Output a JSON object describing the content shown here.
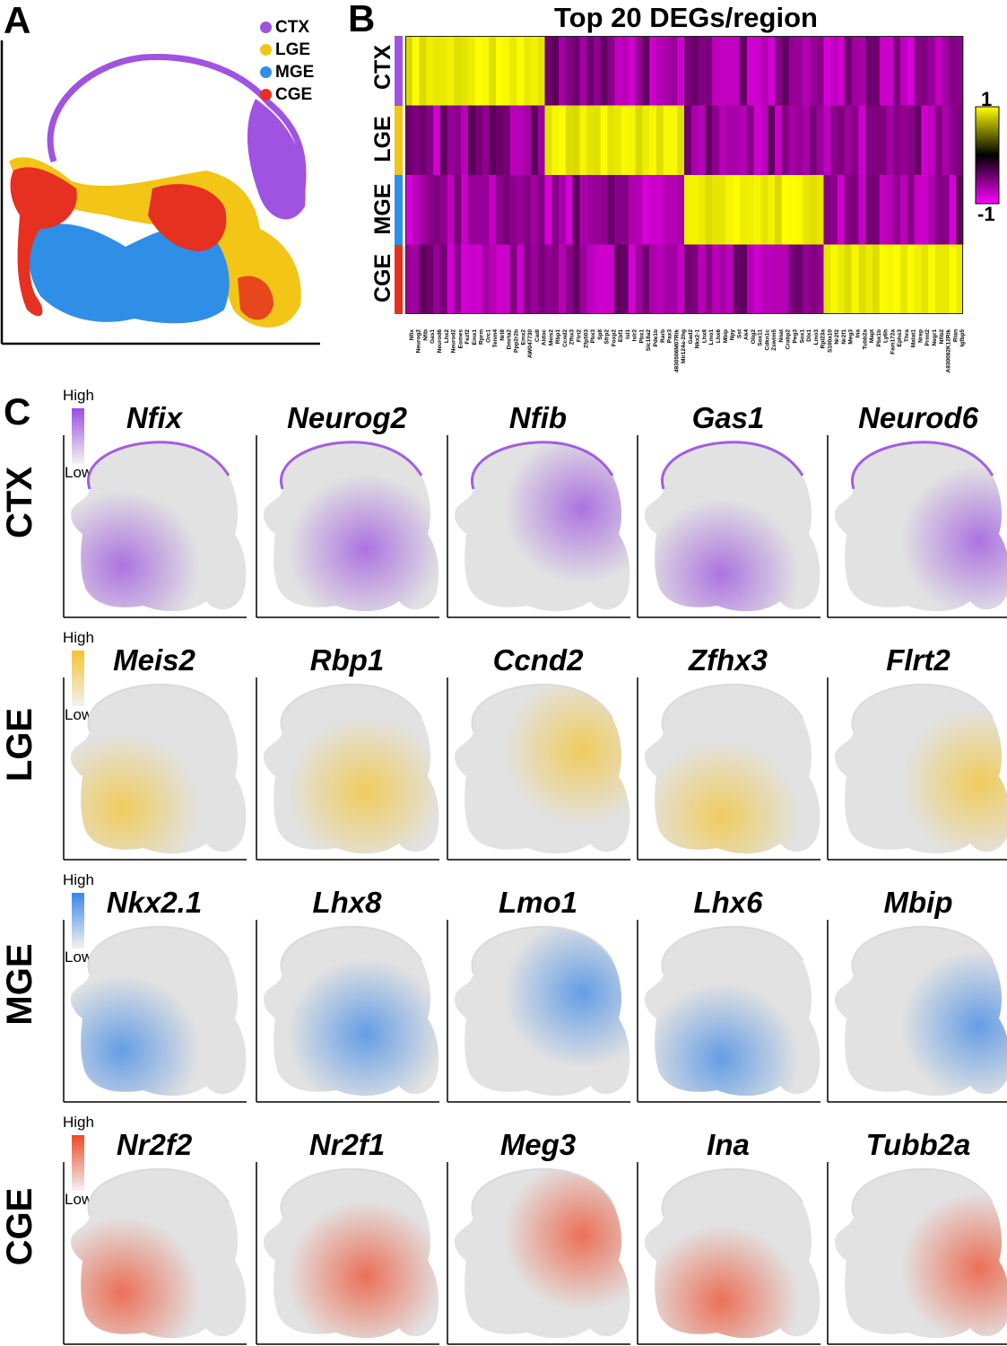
{
  "panels": {
    "a": "A",
    "b": "B",
    "c": "C"
  },
  "legend": [
    {
      "label": "CTX",
      "color": "#a052e0"
    },
    {
      "label": "LGE",
      "color": "#f2c516"
    },
    {
      "label": "MGE",
      "color": "#2f8fe6"
    },
    {
      "label": "CGE",
      "color": "#e63020"
    }
  ],
  "heatmap": {
    "title": "Top 20 DEGs/region",
    "rows": [
      "CTX",
      "LGE",
      "MGE",
      "CGE"
    ],
    "scale_max": "1",
    "scale_min": "-1",
    "genes": [
      "Nfix",
      "Neurog2",
      "Nfib",
      "Gas1",
      "Neurod6",
      "Lhx2",
      "Neurod2",
      "Eomes",
      "Fezf2",
      "Emx1",
      "Rprm",
      "Orc1",
      "Tenm4",
      "Nrl8",
      "Dmrta2",
      "Ppp2r2b",
      "Emx2",
      "AW047730",
      "Cadl",
      "Aldoc",
      "Meis2",
      "Rbp1",
      "Ccnd2",
      "Zfhx3",
      "Flrt2",
      "Zfp503",
      "Pbx3",
      "Sp8",
      "Sfrp2",
      "Foxp2",
      "Ebf1",
      "Isl1",
      "Islr2",
      "Pbx1",
      "Slc18a2",
      "Pde1b",
      "Rarb",
      "Pax3",
      "4930506M07Rik",
      "Mir124a-2hg",
      "Gad2",
      "Nkx2-1",
      "Lhx8",
      "Lmo1",
      "Lhx6",
      "Mbip",
      "Npy",
      "Sst",
      "Ak4",
      "Olig2",
      "Sox11",
      "Cdkn1c",
      "Zswim5",
      "Nnat",
      "Crabp2",
      "Peg3",
      "Sox1",
      "Dlx1",
      "Lmo3",
      "Rpl23a",
      "S100a10",
      "Nr2f2",
      "Nr2f1",
      "Meg3",
      "Ina",
      "Tubb2a",
      "Mapt",
      "Pbx1b",
      "Ly6h",
      "Fam172a",
      "Ephs3",
      "Thra",
      "Malat1",
      "Nrep",
      "Prmt2",
      "Negr1",
      "Nfib2",
      "A930082K12Rik",
      "Rian",
      "Igfbp5"
    ]
  },
  "feature_plots": {
    "high": "High",
    "low": "Low",
    "rows": [
      {
        "region": "CTX",
        "color": "#9a4ee0",
        "genes": [
          "Nfix",
          "Neurog2",
          "Nfib",
          "Gas1",
          "Neurod6"
        ]
      },
      {
        "region": "LGE",
        "color": "#f4c430",
        "genes": [
          "Meis2",
          "Rbp1",
          "Ccnd2",
          "Zfhx3",
          "Flrt2"
        ]
      },
      {
        "region": "MGE",
        "color": "#3b86e6",
        "genes": [
          "Nkx2.1",
          "Lhx8",
          "Lmo1",
          "Lhx6",
          "Mbip"
        ]
      },
      {
        "region": "CGE",
        "color": "#ee4a2a",
        "genes": [
          "Nr2f2",
          "Nr2f1",
          "Meg3",
          "Ina",
          "Tubb2a"
        ]
      }
    ]
  }
}
